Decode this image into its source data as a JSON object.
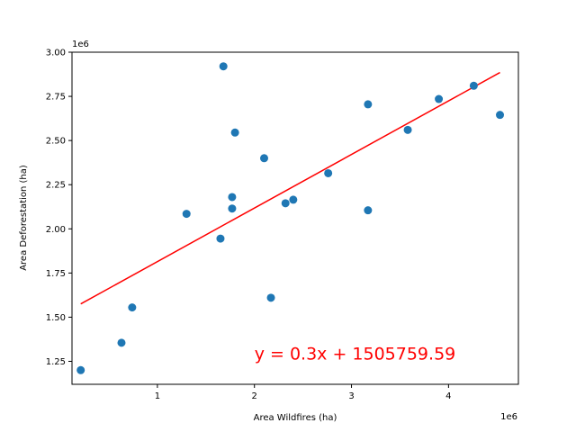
{
  "chart_data": {
    "type": "scatter",
    "xlabel": "Area Wildfires (ha)",
    "ylabel": "Area Deforestation (ha)",
    "x_offset_label": "1e6",
    "y_offset_label": "1e6",
    "xlim": [
      120000,
      4720000
    ],
    "ylim": [
      1120000,
      3000000
    ],
    "x_ticks": [
      {
        "value": 1000000,
        "label": "1"
      },
      {
        "value": 2000000,
        "label": "2"
      },
      {
        "value": 3000000,
        "label": "3"
      },
      {
        "value": 4000000,
        "label": "4"
      }
    ],
    "y_ticks": [
      {
        "value": 1250000,
        "label": "1.25"
      },
      {
        "value": 1500000,
        "label": "1.50"
      },
      {
        "value": 1750000,
        "label": "1.75"
      },
      {
        "value": 2000000,
        "label": "2.00"
      },
      {
        "value": 2250000,
        "label": "2.25"
      },
      {
        "value": 2500000,
        "label": "2.50"
      },
      {
        "value": 2750000,
        "label": "2.75"
      },
      {
        "value": 3000000,
        "label": "3.00"
      }
    ],
    "grid": false,
    "points": [
      {
        "x": 210000,
        "y": 1200000
      },
      {
        "x": 630000,
        "y": 1355000
      },
      {
        "x": 740000,
        "y": 1555000
      },
      {
        "x": 1300000,
        "y": 2085000
      },
      {
        "x": 1650000,
        "y": 1945000
      },
      {
        "x": 1680000,
        "y": 2920000
      },
      {
        "x": 1770000,
        "y": 2115000
      },
      {
        "x": 1770000,
        "y": 2180000
      },
      {
        "x": 1800000,
        "y": 2545000
      },
      {
        "x": 2100000,
        "y": 2400000
      },
      {
        "x": 2170000,
        "y": 1610000
      },
      {
        "x": 2320000,
        "y": 2145000
      },
      {
        "x": 2400000,
        "y": 2165000
      },
      {
        "x": 2760000,
        "y": 2315000
      },
      {
        "x": 3170000,
        "y": 2105000
      },
      {
        "x": 3170000,
        "y": 2705000
      },
      {
        "x": 3580000,
        "y": 2560000
      },
      {
        "x": 3900000,
        "y": 2735000
      },
      {
        "x": 4260000,
        "y": 2810000
      },
      {
        "x": 4530000,
        "y": 2645000
      }
    ],
    "point_color": "#1f77b4",
    "fit_line": {
      "x": [
        210000,
        4530000
      ],
      "y": [
        1575000,
        2885000
      ],
      "color": "#ff0000"
    },
    "annotation": {
      "text": "y = 0.3x + 1505759.59",
      "color": "#ff0000",
      "x": 2000000,
      "y": 1260000
    }
  }
}
